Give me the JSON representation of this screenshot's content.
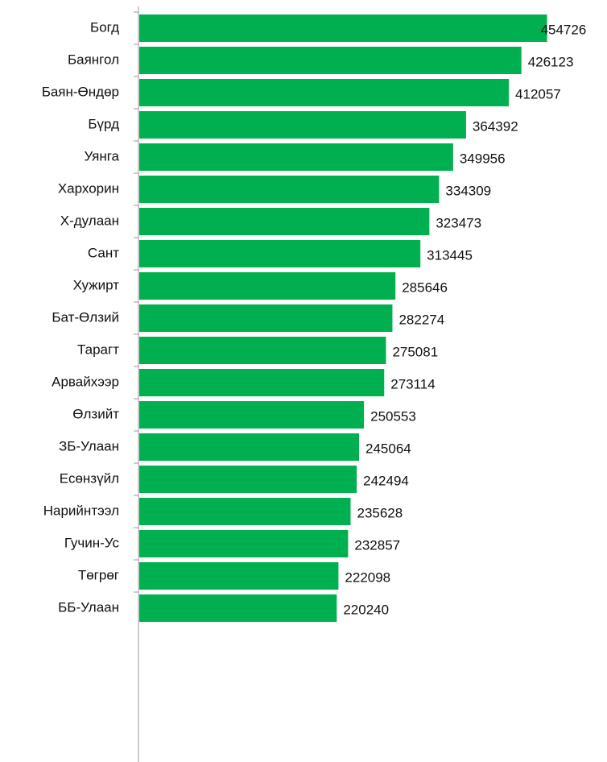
{
  "chart_data": {
    "type": "barh",
    "categories": [
      "Богд",
      "Баянгол",
      "Баян-Өндөр",
      "Бүрд",
      "Уянга",
      "Хархорин",
      "Х-дулаан",
      "Сант",
      "Хужирт",
      "Бат-Өлзий",
      "Тарагт",
      "Арвайхээр",
      "Өлзийт",
      "ЗБ-Улаан",
      "Есөнзүйл",
      "Нарийнтээл",
      "Гучин-Ус",
      "Төгрөг",
      "ББ-Улаан"
    ],
    "values": [
      454726,
      426123,
      412057,
      364392,
      349956,
      334309,
      323473,
      313445,
      285646,
      282274,
      275081,
      273114,
      250553,
      245064,
      242494,
      235628,
      232857,
      222098,
      220240
    ],
    "color": "#00b050",
    "xlim": [
      0,
      500000
    ]
  }
}
